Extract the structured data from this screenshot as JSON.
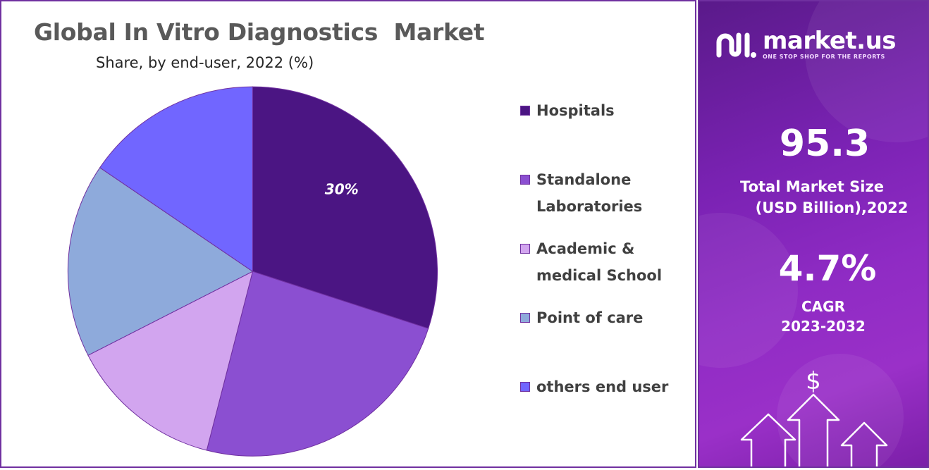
{
  "chart_data": {
    "type": "pie",
    "title": "Global In Vitro Diagnostics  Market",
    "subtitle": "Share, by end-user, 2022 (%)",
    "categories": [
      "Hospitals",
      "Standalone Laboratories",
      "Academic & medical School",
      "Point of care",
      "others end user"
    ],
    "values": [
      30,
      24,
      13.5,
      17,
      15.5
    ],
    "data_labels": [
      "30%",
      "",
      "",
      "",
      ""
    ],
    "colors": [
      "#4b1583",
      "#8b4fd1",
      "#d2a5ef",
      "#8eaadb",
      "#7166ff"
    ],
    "legend_position": "right"
  },
  "legend": {
    "items": [
      {
        "label": "Hospitals",
        "color": "#4b1583"
      },
      {
        "label": "Standalone\nLaboratories",
        "color": "#8b4fd1"
      },
      {
        "label": "Academic &\nmedical School",
        "color": "#d2a5ef"
      },
      {
        "label": "Point of care",
        "color": "#8eaadb"
      },
      {
        "label": "others end user",
        "color": "#7166ff"
      }
    ]
  },
  "sidebar": {
    "brand_name": "market.us",
    "brand_tagline": "ONE STOP SHOP FOR THE REPORTS",
    "market_size_value": "95.3",
    "market_size_label_line1": "Total Market Size",
    "market_size_label_line2": "(USD Billion),2022",
    "cagr_value": "4.7%",
    "cagr_label": "CAGR",
    "cagr_period": "2023-2032",
    "currency_symbol": "$",
    "background_color": "#8a2bc2",
    "logo_icon": "market-us-logo-icon",
    "graphic_icon": "growth-arrows-icon"
  }
}
